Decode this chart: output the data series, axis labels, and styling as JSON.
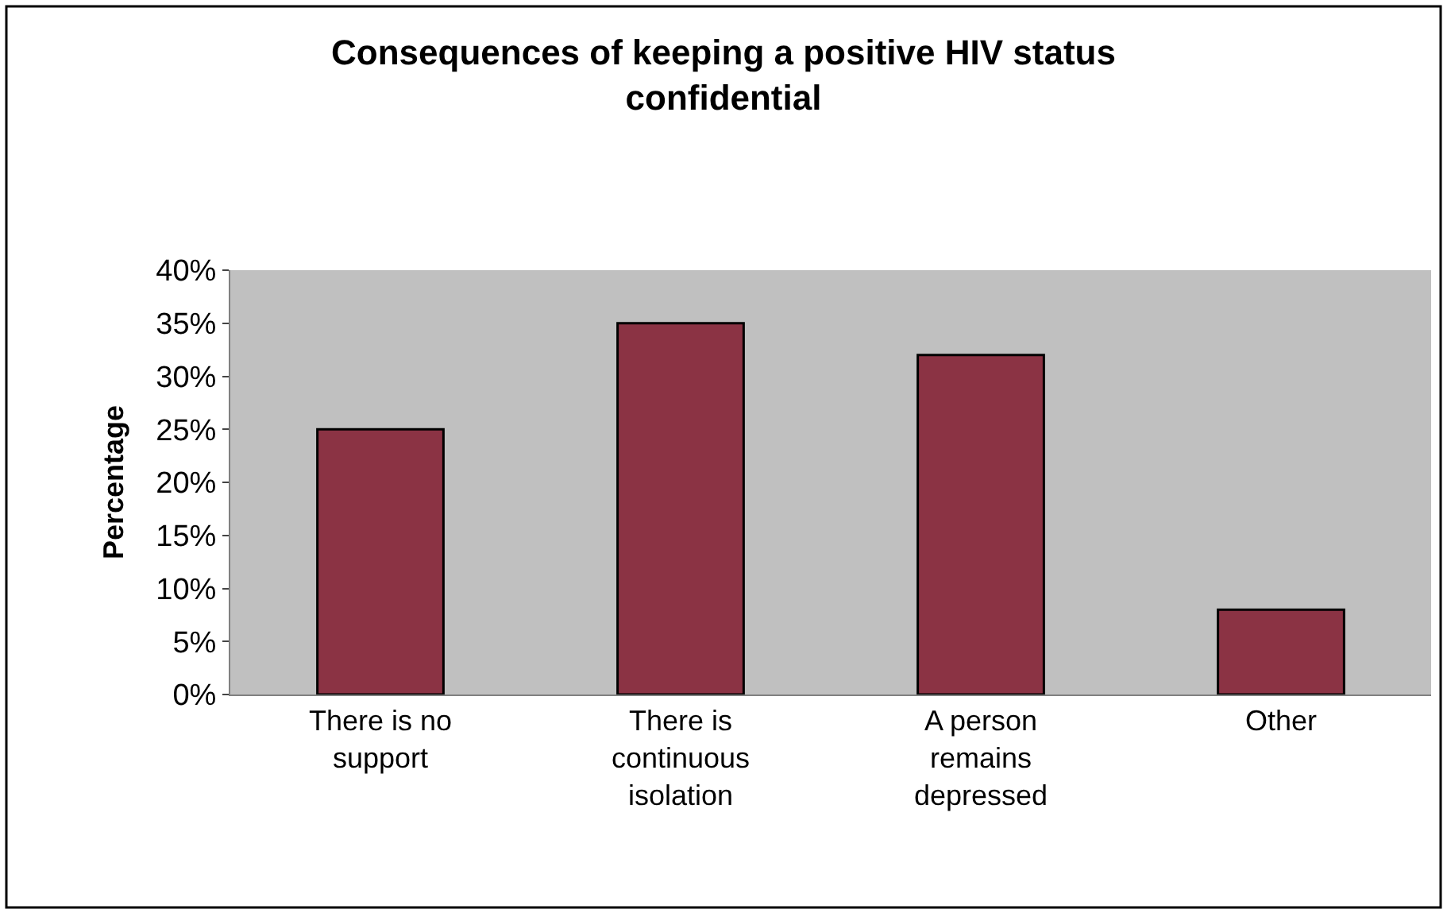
{
  "chart_data": {
    "type": "bar",
    "title": "Consequences of keeping a positive HIV status\nconfidential",
    "ylabel": "Percentage",
    "categories": [
      "There is no\nsupport",
      "There is\ncontinuous\nisolation",
      "A person\nremains\ndepressed",
      "Other"
    ],
    "values": [
      25,
      35,
      32,
      8
    ],
    "color": "#8b3344",
    "ylim": [
      0,
      40
    ],
    "yticks": [
      {
        "value": 0,
        "label": "0%"
      },
      {
        "value": 5,
        "label": "5%"
      },
      {
        "value": 10,
        "label": "10%"
      },
      {
        "value": 15,
        "label": "15%"
      },
      {
        "value": 20,
        "label": "20%"
      },
      {
        "value": 25,
        "label": "25%"
      },
      {
        "value": 30,
        "label": "30%"
      },
      {
        "value": 35,
        "label": "35%"
      },
      {
        "value": 40,
        "label": "40%"
      }
    ],
    "grid": false,
    "legend": false
  }
}
